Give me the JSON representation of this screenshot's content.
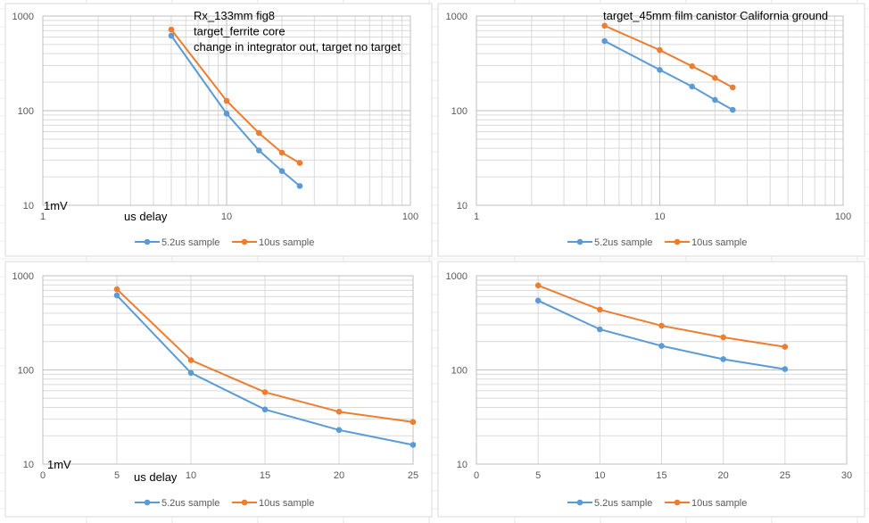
{
  "colors": {
    "series1": "#5b9bd5",
    "series2": "#ed7d31",
    "grid": "#d9d9d9",
    "axis": "#bfbfbf",
    "text": "#595959"
  },
  "chart_data": [
    {
      "type": "line",
      "x_scale": "log",
      "y_scale": "log",
      "xlim": [
        1,
        100
      ],
      "ylim": [
        10,
        1000
      ],
      "x_ticks": [
        "1",
        "10",
        "100"
      ],
      "y_ticks": [
        "10",
        "100",
        "1000"
      ],
      "annotations": [
        "Rx_133mm fig8",
        "target_ferrite core",
        "change in integrator out, target no target"
      ],
      "ylabel": "1mV",
      "xlabel": "us delay",
      "legend_position": "bottom",
      "x": [
        5,
        10,
        15,
        20,
        25
      ],
      "series": [
        {
          "name": "5.2us sample",
          "values": [
            620,
            93,
            38,
            23,
            16
          ]
        },
        {
          "name": "10us sample",
          "values": [
            720,
            127,
            58,
            36,
            28
          ]
        }
      ]
    },
    {
      "type": "line",
      "x_scale": "log",
      "y_scale": "log",
      "xlim": [
        1,
        100
      ],
      "ylim": [
        10,
        1000
      ],
      "x_ticks": [
        "1",
        "10",
        "100"
      ],
      "y_ticks": [
        "10",
        "100",
        "1000"
      ],
      "annotations": [
        "target_45mm film canistor California ground"
      ],
      "ylabel": "",
      "xlabel": "",
      "legend_position": "bottom",
      "x": [
        5,
        10,
        15,
        20,
        25
      ],
      "series": [
        {
          "name": "5.2us sample",
          "values": [
            545,
            270,
            180,
            130,
            102
          ]
        },
        {
          "name": "10us sample",
          "values": [
            790,
            437,
            295,
            222,
            176
          ]
        }
      ]
    },
    {
      "type": "line",
      "x_scale": "linear",
      "y_scale": "log",
      "xlim": [
        0,
        25
      ],
      "ylim": [
        10,
        1000
      ],
      "x_ticks": [
        "0",
        "5",
        "10",
        "15",
        "20",
        "25"
      ],
      "y_ticks": [
        "10",
        "100",
        "1000"
      ],
      "annotations": [],
      "ylabel": "1mV",
      "xlabel": "us delay",
      "legend_position": "bottom",
      "x": [
        5,
        10,
        15,
        20,
        25
      ],
      "series": [
        {
          "name": "5.2us sample",
          "values": [
            620,
            93,
            38,
            23,
            16
          ]
        },
        {
          "name": "10us sample",
          "values": [
            720,
            127,
            58,
            36,
            28
          ]
        }
      ]
    },
    {
      "type": "line",
      "x_scale": "linear",
      "y_scale": "log",
      "xlim": [
        0,
        30
      ],
      "ylim": [
        10,
        1000
      ],
      "x_ticks": [
        "0",
        "5",
        "10",
        "15",
        "20",
        "25",
        "30"
      ],
      "y_ticks": [
        "10",
        "100",
        "1000"
      ],
      "annotations": [],
      "ylabel": "",
      "xlabel": "",
      "legend_position": "bottom",
      "x": [
        5,
        10,
        15,
        20,
        25
      ],
      "series": [
        {
          "name": "5.2us sample",
          "values": [
            545,
            270,
            180,
            130,
            102
          ]
        },
        {
          "name": "10us sample",
          "values": [
            790,
            437,
            295,
            222,
            176
          ]
        }
      ]
    }
  ]
}
